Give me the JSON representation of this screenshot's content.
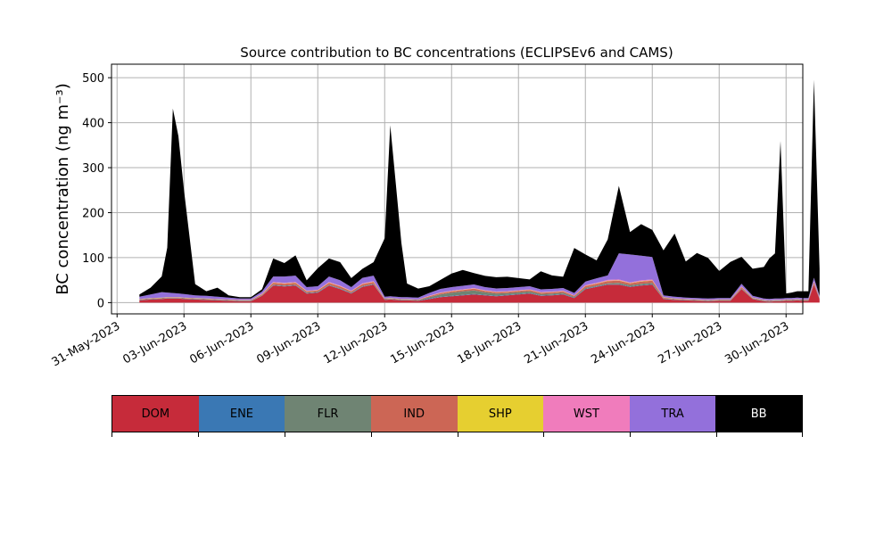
{
  "chart_data": {
    "type": "area",
    "stacked": true,
    "title": "Source contribution to BC concentrations (ECLIPSEv6 and CAMS)",
    "ylabel": "BC concentration (ng m⁻³)",
    "xlabel": "",
    "ylim": [
      -25,
      530
    ],
    "xlim_days_from_may31": [
      -0.25,
      30.75
    ],
    "grid": true,
    "x_tick_labels": [
      "31-May-2023",
      "03-Jun-2023",
      "06-Jun-2023",
      "09-Jun-2023",
      "12-Jun-2023",
      "15-Jun-2023",
      "18-Jun-2023",
      "21-Jun-2023",
      "24-Jun-2023",
      "27-Jun-2023",
      "30-Jun-2023"
    ],
    "y_ticks": [
      0,
      100,
      200,
      300,
      400,
      500
    ],
    "x": [
      "2023-06-01",
      "2023-06-01 12:00",
      "2023-06-02",
      "2023-06-02 06:00",
      "2023-06-02 12:00",
      "2023-06-02 18:00",
      "2023-06-03",
      "2023-06-03 12:00",
      "2023-06-04",
      "2023-06-04 12:00",
      "2023-06-05",
      "2023-06-05 12:00",
      "2023-06-06",
      "2023-06-06 12:00",
      "2023-06-07",
      "2023-06-07 12:00",
      "2023-06-08",
      "2023-06-08 12:00",
      "2023-06-09",
      "2023-06-09 12:00",
      "2023-06-10",
      "2023-06-10 12:00",
      "2023-06-11",
      "2023-06-11 12:00",
      "2023-06-12",
      "2023-06-12 06:00",
      "2023-06-12 12:00",
      "2023-06-12 18:00",
      "2023-06-13",
      "2023-06-13 12:00",
      "2023-06-14",
      "2023-06-14 12:00",
      "2023-06-15",
      "2023-06-15 12:00",
      "2023-06-16",
      "2023-06-16 12:00",
      "2023-06-17",
      "2023-06-17 12:00",
      "2023-06-18",
      "2023-06-18 12:00",
      "2023-06-19",
      "2023-06-19 12:00",
      "2023-06-20",
      "2023-06-20 12:00",
      "2023-06-21",
      "2023-06-21 12:00",
      "2023-06-22",
      "2023-06-22 12:00",
      "2023-06-23",
      "2023-06-23 12:00",
      "2023-06-24",
      "2023-06-24 12:00",
      "2023-06-25",
      "2023-06-25 12:00",
      "2023-06-26",
      "2023-06-26 12:00",
      "2023-06-27",
      "2023-06-27 12:00",
      "2023-06-28",
      "2023-06-28 12:00",
      "2023-06-29",
      "2023-06-29 06:00",
      "2023-06-29 12:00",
      "2023-06-29 18:00",
      "2023-06-30",
      "2023-06-30 06:00",
      "2023-06-30 12:00",
      "2023-06-30 18:00",
      "2023-07-01",
      "2023-07-01 06:00",
      "2023-07-01 12:00"
    ],
    "series": [
      {
        "name": "DOM",
        "color": "#c62b3a",
        "values": [
          5,
          7,
          8,
          9,
          9,
          9,
          8,
          7,
          6,
          5,
          4,
          3,
          3,
          15,
          38,
          36,
          38,
          20,
          22,
          38,
          30,
          20,
          35,
          40,
          6,
          7,
          6,
          5,
          5,
          4,
          8,
          12,
          14,
          16,
          18,
          16,
          14,
          16,
          18,
          20,
          15,
          16,
          18,
          10,
          30,
          35,
          40,
          40,
          35,
          38,
          40,
          8,
          6,
          5,
          4,
          3,
          4,
          4,
          30,
          8,
          3,
          2,
          3,
          3,
          4,
          4,
          5,
          4,
          4,
          40,
          8
        ]
      },
      {
        "name": "ENE",
        "color": "#3a78b4",
        "values": [
          0.5,
          0.5,
          0.5,
          0.5,
          0.5,
          0.5,
          0.5,
          0.5,
          0.5,
          0.5,
          0.5,
          0.5,
          0.5,
          0.5,
          1,
          1,
          1,
          1,
          1,
          1,
          1,
          1,
          1,
          1,
          0.5,
          0.5,
          0.5,
          0.5,
          0.5,
          0.5,
          1,
          1,
          1,
          1,
          1,
          1,
          1,
          1,
          1,
          1,
          1,
          1,
          1,
          1,
          1,
          1,
          1,
          1,
          1,
          1,
          1,
          0.5,
          0.5,
          0.5,
          0.5,
          0.5,
          0.5,
          0.5,
          0.5,
          0.5,
          0.5,
          0.5,
          0.5,
          0.5,
          0.5,
          0.5,
          0.5,
          0.5,
          0.5,
          0.5,
          0.5
        ]
      },
      {
        "name": "FLR",
        "color": "#6f8473",
        "values": [
          1,
          1,
          1,
          1,
          1,
          1,
          1,
          1,
          1,
          1,
          1,
          1,
          1,
          1,
          1,
          1,
          1,
          1,
          1,
          1,
          1,
          1,
          1,
          1,
          1,
          1,
          1,
          1,
          1,
          1,
          3,
          5,
          7,
          8,
          8,
          6,
          5,
          4,
          4,
          4,
          3,
          3,
          3,
          2,
          2,
          2,
          2,
          3,
          3,
          3,
          3,
          1,
          1,
          1,
          1,
          1,
          1,
          1,
          1,
          1,
          1,
          1,
          1,
          1,
          1,
          1,
          1,
          1,
          1,
          1,
          1
        ]
      },
      {
        "name": "IND",
        "color": "#cc6655",
        "values": [
          1,
          1,
          1,
          1,
          1,
          1,
          1,
          1,
          1,
          1,
          1,
          1,
          1,
          2,
          4,
          4,
          4,
          3,
          3,
          4,
          4,
          3,
          4,
          4,
          1,
          1,
          1,
          1,
          1,
          1,
          2,
          3,
          3,
          3,
          4,
          3,
          3,
          3,
          3,
          3,
          3,
          3,
          3,
          2,
          4,
          4,
          5,
          5,
          4,
          5,
          5,
          2,
          1,
          1,
          1,
          1,
          1,
          1,
          3,
          1,
          1,
          1,
          1,
          1,
          1,
          1,
          1,
          1,
          1,
          4,
          1
        ]
      },
      {
        "name": "SHP",
        "color": "#e6cf30",
        "values": [
          0.3,
          0.3,
          0.3,
          0.3,
          0.3,
          0.3,
          0.3,
          0.3,
          0.3,
          0.3,
          0.3,
          0.3,
          0.3,
          0.3,
          0.5,
          0.5,
          0.5,
          0.5,
          0.5,
          0.5,
          0.5,
          0.5,
          0.5,
          0.5,
          0.3,
          0.3,
          0.3,
          0.3,
          0.3,
          0.3,
          0.5,
          0.5,
          0.5,
          0.5,
          0.5,
          0.5,
          0.5,
          0.5,
          0.5,
          0.5,
          0.5,
          0.5,
          0.5,
          0.5,
          0.5,
          0.5,
          0.5,
          0.5,
          0.5,
          0.5,
          0.5,
          0.3,
          0.3,
          0.3,
          0.3,
          0.3,
          0.3,
          0.3,
          0.3,
          0.3,
          0.3,
          0.3,
          0.3,
          0.3,
          0.3,
          0.3,
          0.3,
          0.3,
          0.3,
          0.3,
          0.3
        ]
      },
      {
        "name": "WST",
        "color": "#f07cbc",
        "values": [
          0.5,
          0.5,
          0.5,
          0.5,
          0.5,
          0.5,
          0.5,
          0.5,
          0.5,
          0.5,
          0.5,
          0.5,
          0.5,
          1,
          1.5,
          1.5,
          1.5,
          1,
          1,
          1.5,
          1.5,
          1,
          1.5,
          1.5,
          0.5,
          0.5,
          0.5,
          0.5,
          0.5,
          0.5,
          1,
          1,
          1,
          1,
          1,
          1,
          1,
          1,
          1,
          1,
          1,
          1,
          1,
          1,
          1.5,
          1.5,
          2,
          2,
          1.5,
          2,
          2,
          0.5,
          0.5,
          0.5,
          0.5,
          0.5,
          0.5,
          0.5,
          1,
          0.5,
          0.5,
          0.5,
          0.5,
          0.5,
          0.5,
          0.5,
          0.5,
          0.5,
          0.5,
          1.5,
          0.5
        ]
      },
      {
        "name": "TRA",
        "color": "#9370db",
        "values": [
          5,
          8,
          12,
          10,
          9,
          8,
          8,
          6,
          6,
          5,
          4,
          3,
          3,
          5,
          12,
          14,
          14,
          8,
          8,
          12,
          12,
          8,
          12,
          12,
          4,
          4,
          4,
          4,
          4,
          4,
          6,
          8,
          8,
          8,
          8,
          7,
          7,
          7,
          7,
          7,
          6,
          6,
          6,
          5,
          8,
          10,
          10,
          58,
          62,
          55,
          50,
          4,
          4,
          3,
          3,
          3,
          3,
          3,
          6,
          4,
          3,
          3,
          3,
          3,
          3,
          3,
          3,
          3,
          3,
          8,
          4
        ]
      },
      {
        "name": "BB",
        "color": "#000000",
        "values": [
          5,
          15,
          35,
          100,
          410,
          350,
          230,
          25,
          10,
          20,
          5,
          3,
          3,
          5,
          40,
          30,
          45,
          15,
          40,
          40,
          40,
          20,
          20,
          30,
          130,
          380,
          250,
          120,
          30,
          20,
          15,
          20,
          30,
          35,
          25,
          25,
          25,
          25,
          20,
          15,
          40,
          30,
          25,
          100,
          60,
          40,
          80,
          150,
          50,
          70,
          60,
          100,
          140,
          80,
          100,
          90,
          60,
          80,
          60,
          60,
          70,
          90,
          100,
          350,
          10,
          12,
          14,
          15,
          15,
          440,
          60
        ]
      }
    ]
  },
  "legend": {
    "items": [
      {
        "label": "DOM",
        "color": "#c62b3a",
        "text_color": "#000000"
      },
      {
        "label": "ENE",
        "color": "#3a78b4",
        "text_color": "#000000"
      },
      {
        "label": "FLR",
        "color": "#6f8473",
        "text_color": "#000000"
      },
      {
        "label": "IND",
        "color": "#cc6655",
        "text_color": "#000000"
      },
      {
        "label": "SHP",
        "color": "#e6cf30",
        "text_color": "#000000"
      },
      {
        "label": "WST",
        "color": "#f07cbc",
        "text_color": "#000000"
      },
      {
        "label": "TRA",
        "color": "#9370db",
        "text_color": "#000000"
      },
      {
        "label": "BB",
        "color": "#000000",
        "text_color": "#ffffff"
      }
    ]
  }
}
